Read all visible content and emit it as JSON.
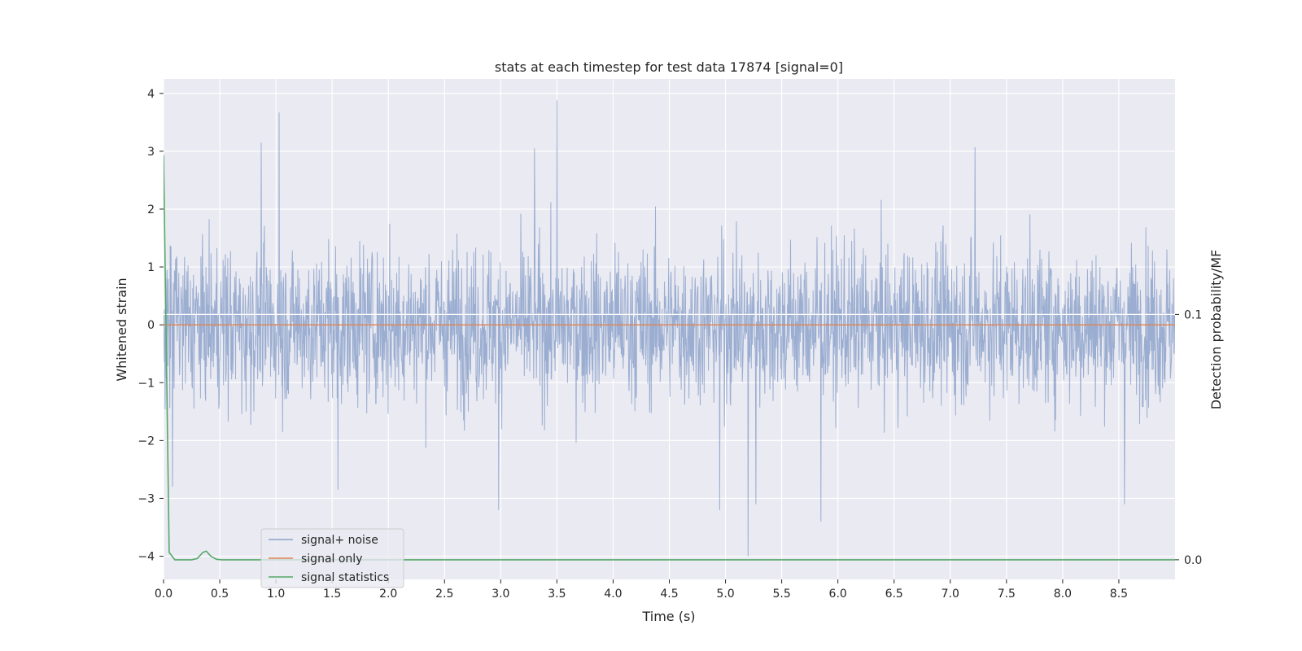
{
  "chart_data": {
    "type": "line",
    "title": "stats at each timestep for test data 17874 [signal=0]",
    "xlabel": "Time (s)",
    "ylabel": "Whitened strain",
    "ylabel_right": "Detection probability/MF",
    "xlim": [
      0.0,
      9.0
    ],
    "ylim": [
      -4.4,
      4.25
    ],
    "ylim_right": [
      -0.008,
      0.196
    ],
    "x_ticks": [
      0.0,
      0.5,
      1.0,
      1.5,
      2.0,
      2.5,
      3.0,
      3.5,
      4.0,
      4.5,
      5.0,
      5.5,
      6.0,
      6.5,
      7.0,
      7.5,
      8.0,
      8.5
    ],
    "x_tick_labels": [
      "0.0",
      "0.5",
      "1.0",
      "1.5",
      "2.0",
      "2.5",
      "3.0",
      "3.5",
      "4.0",
      "4.5",
      "5.0",
      "5.5",
      "6.0",
      "6.5",
      "7.0",
      "7.5",
      "8.0",
      "8.5"
    ],
    "y_ticks": [
      -4,
      -3,
      -2,
      -1,
      0,
      1,
      2,
      3,
      4
    ],
    "y_tick_labels": [
      "−4",
      "−3",
      "−2",
      "−1",
      "0",
      "1",
      "2",
      "3",
      "4"
    ],
    "y_ticks_right": [
      0.0,
      0.1
    ],
    "y_tick_labels_right": [
      "0.0",
      "0.1"
    ],
    "grid": true,
    "legend_position": "lower-left",
    "series": [
      {
        "name": "signal+ noise",
        "axis": "left",
        "color": "#4c72b0",
        "description": "dense noisy whitened strain, roughly between -2.5 and 2.5 with spikes",
        "x_range": [
          0.0,
          9.0
        ],
        "extremes": [
          {
            "x": 1.03,
            "y": 3.67
          },
          {
            "x": 0.87,
            "y": 3.15
          },
          {
            "x": 3.5,
            "y": 3.88
          },
          {
            "x": 3.3,
            "y": 3.05
          },
          {
            "x": 7.22,
            "y": 3.07
          },
          {
            "x": 5.2,
            "y": -4.0
          },
          {
            "x": 5.27,
            "y": -3.1
          },
          {
            "x": 5.85,
            "y": -3.4
          },
          {
            "x": 2.98,
            "y": -3.2
          },
          {
            "x": 4.95,
            "y": -3.2
          },
          {
            "x": 8.55,
            "y": -3.1
          },
          {
            "x": 1.55,
            "y": -2.85
          },
          {
            "x": 0.08,
            "y": -2.8
          }
        ]
      },
      {
        "name": "signal only",
        "axis": "left",
        "color": "#dd8452",
        "x": [
          0.0,
          9.0
        ],
        "y": [
          0.0,
          0.0
        ]
      },
      {
        "name": "signal statistics",
        "axis": "right",
        "color": "#55a868",
        "x": [
          0.0,
          0.05,
          0.1,
          0.15,
          0.2,
          0.25,
          0.3,
          0.35,
          0.38,
          0.42,
          0.47,
          0.52,
          9.0
        ],
        "y": [
          0.165,
          0.003,
          0.0,
          0.0,
          0.0,
          0.0,
          0.0005,
          0.003,
          0.0035,
          0.0015,
          0.0002,
          0.0,
          0.0
        ]
      }
    ],
    "reference_lines": [
      {
        "axis": "right",
        "y": 0.1,
        "color": "#ffffff"
      }
    ]
  }
}
